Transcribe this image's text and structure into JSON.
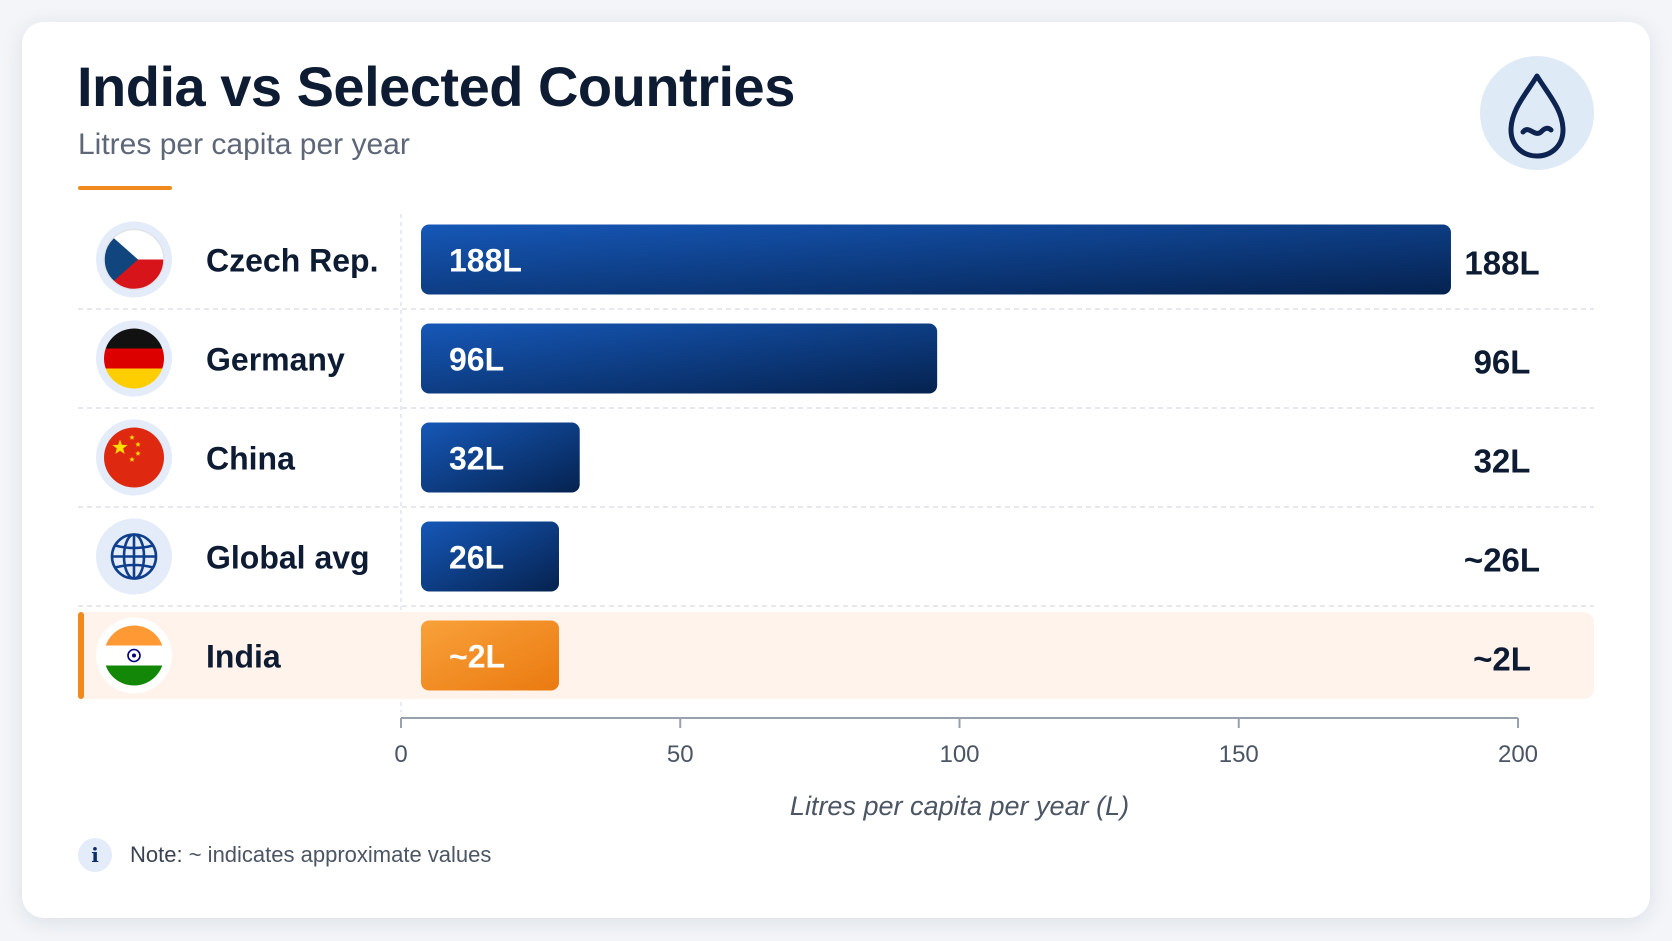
{
  "header": {
    "title": "India vs Selected Countries",
    "subtitle": "Litres per capita per year",
    "icon": "water-drop-icon",
    "accent_color": "#f08a1c"
  },
  "note": {
    "label": "Note:",
    "text": "~ indicates approximate values",
    "icon": "info-icon"
  },
  "chart_data": {
    "type": "bar",
    "orientation": "horizontal",
    "categories": [
      "Czech Rep.",
      "Germany",
      "China",
      "Global avg",
      "India"
    ],
    "values": [
      188,
      96,
      32,
      26,
      2
    ],
    "bar_labels": [
      "188L",
      "96L",
      "32L",
      "26L",
      "~2L"
    ],
    "value_labels": [
      "188L",
      "96L",
      "32L",
      "~26L",
      "~2L"
    ],
    "category_icons": [
      "czech-flag-icon",
      "germany-flag-icon",
      "china-flag-icon",
      "globe-icon",
      "india-flag-icon"
    ],
    "highlight": "India",
    "xlabel": "Litres per capita per year (L)",
    "xlim": [
      0,
      200
    ],
    "xticks": [
      0,
      50,
      100,
      150,
      200
    ],
    "colors": {
      "bar": "#0f3f8c",
      "bar_dark": "#052456",
      "highlight": "#f08a1c",
      "highlight_bg": "#fff3eb"
    }
  }
}
